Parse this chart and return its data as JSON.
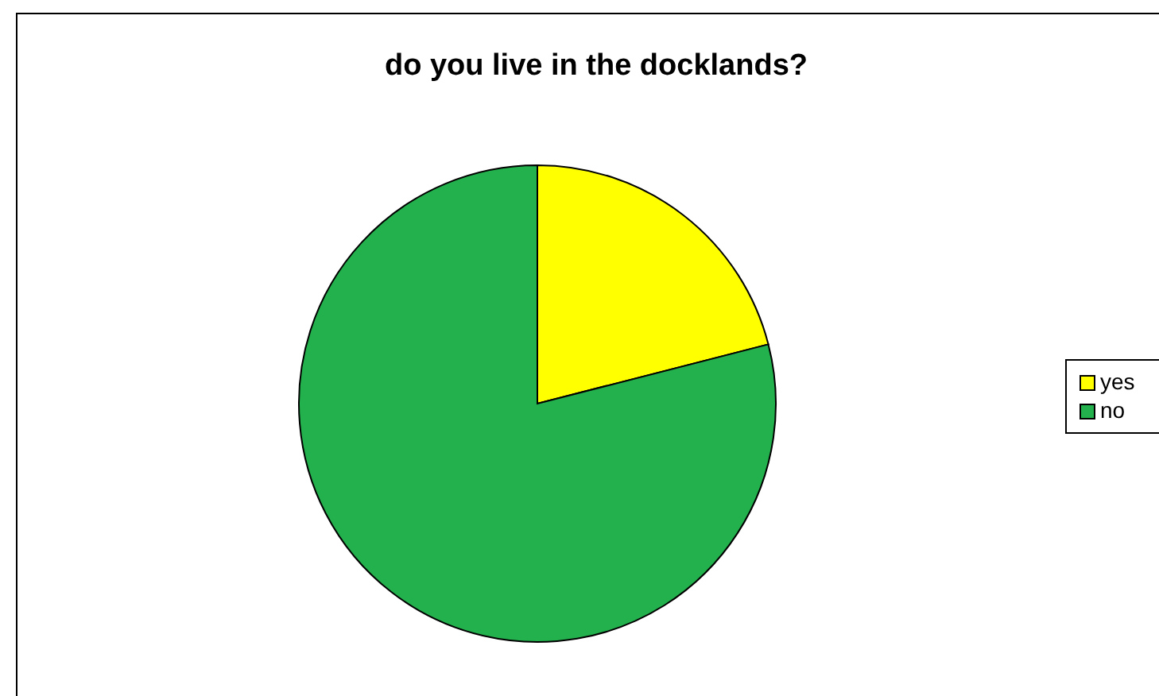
{
  "chart_data": {
    "type": "pie",
    "title": "do you live in the docklands?",
    "categories": [
      "yes",
      "no"
    ],
    "values": [
      21,
      79
    ],
    "colors": [
      "#ffff00",
      "#22b14c"
    ],
    "legend": "right"
  }
}
